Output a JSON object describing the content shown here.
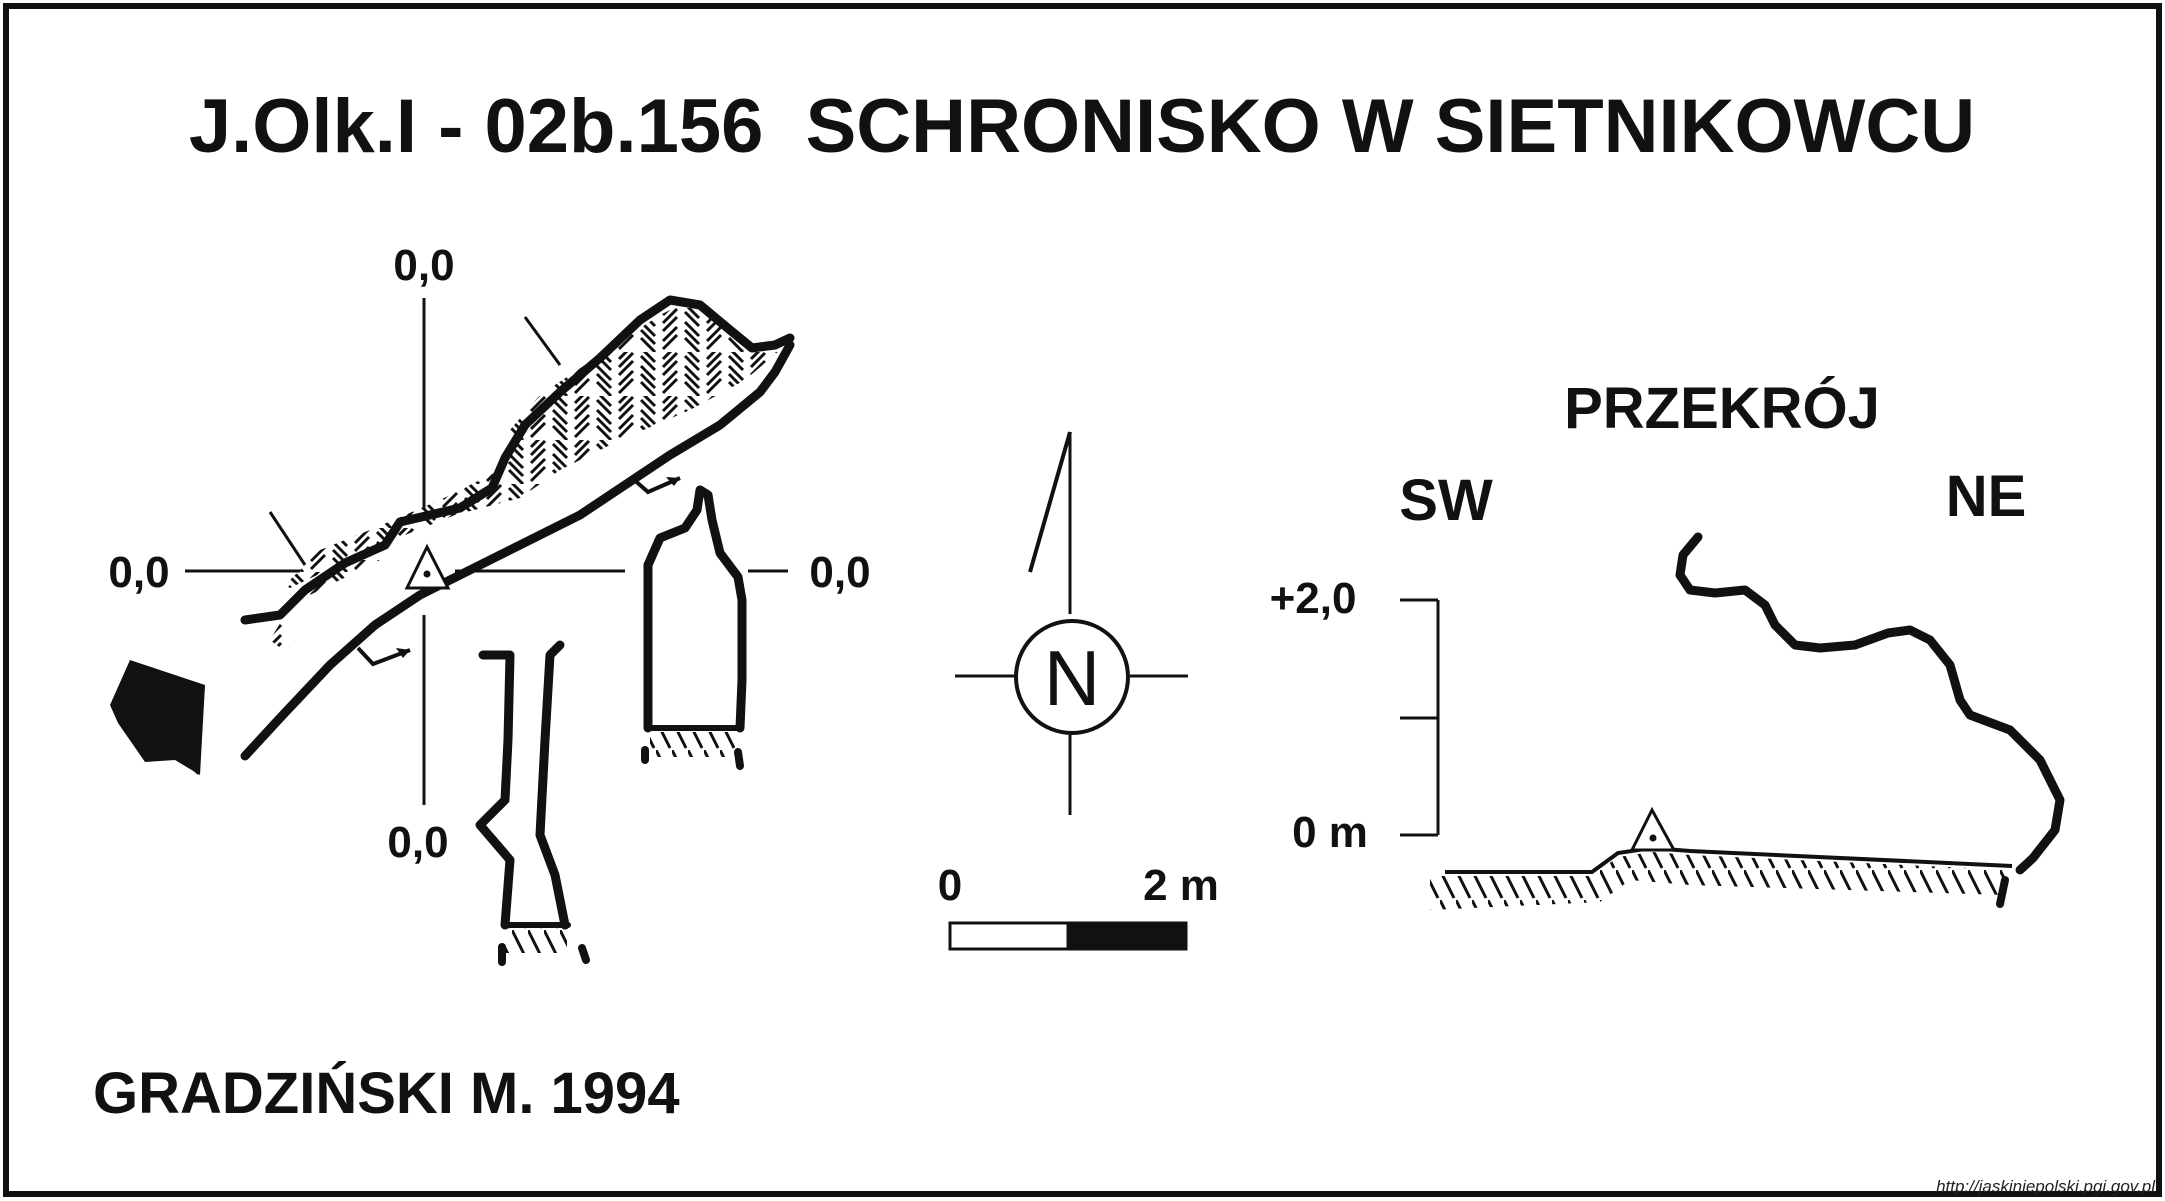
{
  "title": "J.Olk.I - 02b.156  SCHRONISKO W SIETNIKOWCU",
  "author": "GRADZIŃSKI M. 1994",
  "plan": {
    "label_top": "0,0",
    "label_left": "0,0",
    "label_right": "0,0",
    "label_bottom": "0,0"
  },
  "compass": {
    "north_letter": "N"
  },
  "scale_bar": {
    "start_label": "0",
    "end_label": "2 m"
  },
  "section": {
    "title": "PRZEKRÓJ",
    "left_dir": "SW",
    "right_dir": "NE",
    "upper_label": "+2,0",
    "lower_label": "0 m"
  },
  "source_url": "http://jaskiniepolski.pgi.gov.pl",
  "colors": {
    "ink": "#111111",
    "background": "#ffffff"
  }
}
